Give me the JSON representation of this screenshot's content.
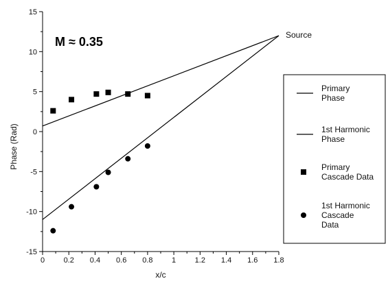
{
  "chart_data": {
    "type": "scatter",
    "xlabel": "x/c",
    "ylabel": "Phase (Rad)",
    "xlim": [
      0,
      1.8
    ],
    "ylim": [
      -15,
      15
    ],
    "xticks": [
      "0",
      "0.2",
      "0.4",
      "0.6",
      "0.8",
      "1",
      "1.2",
      "1.4",
      "1.6",
      "1.8"
    ],
    "yticks": [
      "15",
      "10",
      "5",
      "0",
      "-5",
      "-10",
      "-15"
    ],
    "annotations": {
      "mach": "M ≈ 0.35",
      "source": "Source"
    },
    "series": [
      {
        "name": "Primary Phase",
        "legend_lines": [
          "Primary",
          "Phase"
        ],
        "kind": "line",
        "x": [
          0,
          1.8
        ],
        "y": [
          0.7,
          12.0
        ]
      },
      {
        "name": "1st Harmonic Phase",
        "legend_lines": [
          "1st Harmonic",
          "Phase"
        ],
        "kind": "line",
        "x": [
          0,
          1.8
        ],
        "y": [
          -11.0,
          12.0
        ]
      },
      {
        "name": "Primary Cascade Data",
        "legend_lines": [
          "Primary",
          "Cascade Data"
        ],
        "kind": "square",
        "x": [
          0.08,
          0.22,
          0.41,
          0.5,
          0.65,
          0.8
        ],
        "y": [
          2.6,
          4.0,
          4.7,
          4.9,
          4.7,
          4.5
        ]
      },
      {
        "name": "1st Harmonic Cascade Data",
        "legend_lines": [
          "1st Harmonic",
          "Cascade",
          "Data"
        ],
        "kind": "circle",
        "x": [
          0.08,
          0.22,
          0.41,
          0.5,
          0.65,
          0.8
        ],
        "y": [
          -12.4,
          -9.4,
          -6.9,
          -5.1,
          -3.4,
          -1.8
        ]
      }
    ]
  }
}
